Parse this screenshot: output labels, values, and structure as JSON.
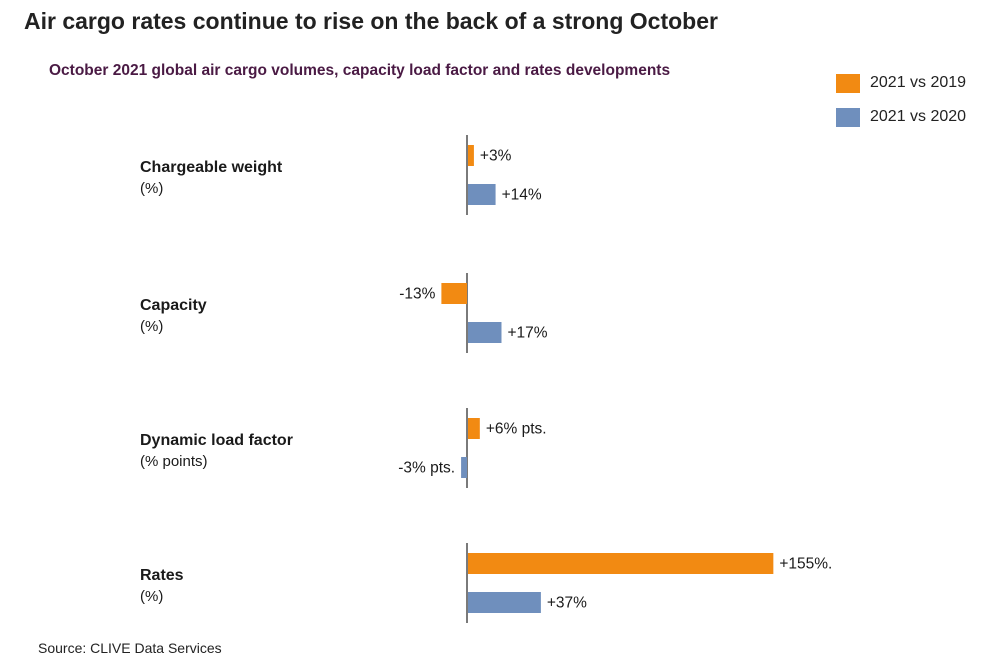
{
  "title": "Air cargo rates continue to rise on the back of a strong October",
  "subtitle": "October 2021 global air cargo volumes, capacity load factor and rates developments",
  "source": "Source: CLIVE Data Services",
  "colors": {
    "series_2019": "#f28a12",
    "series_2020": "#6f8fbd",
    "axis": "#333333"
  },
  "chart_data": {
    "type": "bar",
    "orientation": "horizontal",
    "grid": false,
    "legend_position": "top-right",
    "categories": [
      {
        "name": "Chargeable weight",
        "unit": "(%)"
      },
      {
        "name": "Capacity",
        "unit": "(%)"
      },
      {
        "name": "Dynamic load factor",
        "unit": "(% points)"
      },
      {
        "name": "Rates",
        "unit": "(%)"
      }
    ],
    "series": [
      {
        "name": "2021 vs 2019",
        "values": [
          3,
          -13,
          6,
          155
        ],
        "labels": [
          "+3%",
          "-13%",
          "+6% pts.",
          "+155%."
        ]
      },
      {
        "name": "2021 vs 2020",
        "values": [
          14,
          17,
          -3,
          37
        ],
        "labels": [
          "+14%",
          "+17%",
          "-3% pts.",
          "+37%"
        ]
      }
    ]
  }
}
